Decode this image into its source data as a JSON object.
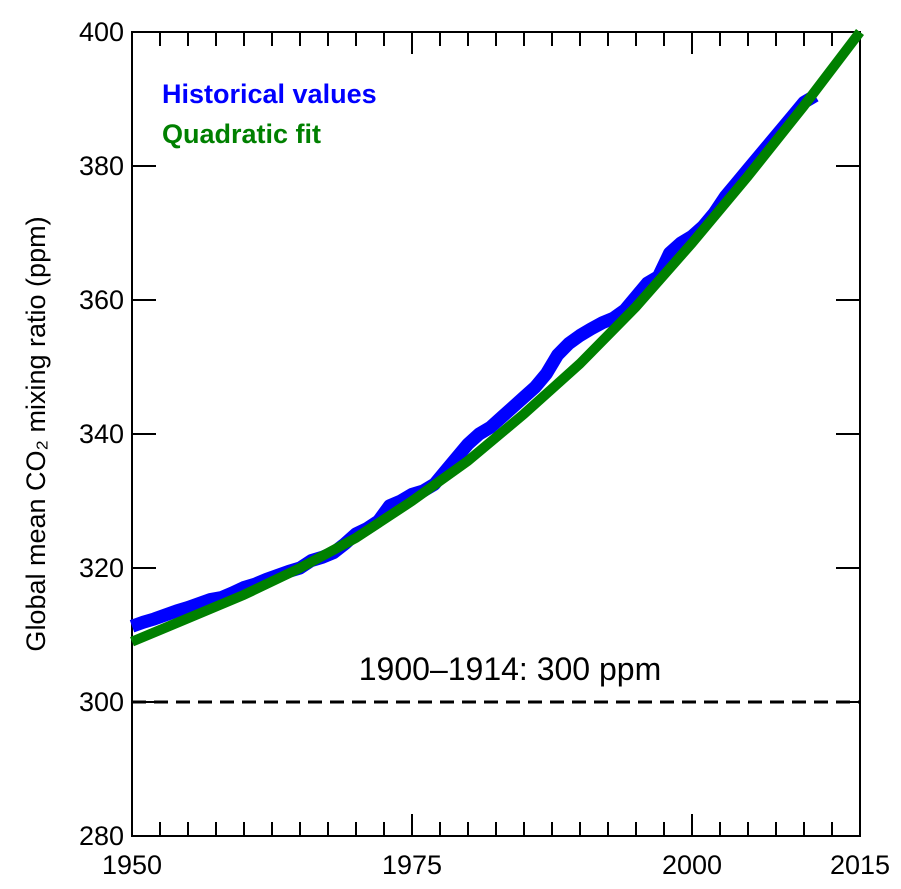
{
  "chart_data": {
    "type": "line",
    "ylabel": "Global mean CO₂ mixing ratio (ppm)",
    "xlim": [
      1950,
      2015
    ],
    "xticks": [
      1950,
      1975,
      2000,
      2015
    ],
    "x_minor_ticks": [
      1952.5,
      1955,
      1957.5,
      1960,
      1962.5,
      1965,
      1967.5,
      1970,
      1972.5,
      1977.5,
      1980,
      1982.5,
      1985,
      1987.5,
      1990,
      1992.5,
      1995,
      1997.5,
      2002.5,
      2005,
      2007.5,
      2010,
      2012.5
    ],
    "ylim": [
      280,
      400
    ],
    "yticks": [
      280,
      300,
      320,
      340,
      360,
      380,
      400
    ],
    "reference_line": {
      "value": 300,
      "label": "1900–1914: 300 ppm",
      "color": "#000000"
    },
    "legend": "upper left",
    "series": [
      {
        "name": "Historical values",
        "color": "#0000ff",
        "x": [
          1950,
          1951,
          1952,
          1953,
          1954,
          1955,
          1956,
          1957,
          1958,
          1959,
          1960,
          1961,
          1962,
          1963,
          1964,
          1965,
          1966,
          1967,
          1968,
          1969,
          1970,
          1971,
          1972,
          1973,
          1974,
          1975,
          1976,
          1977,
          1978,
          1979,
          1980,
          1981,
          1982,
          1983,
          1984,
          1985,
          1986,
          1987,
          1988,
          1989,
          1990,
          1991,
          1992,
          1993,
          1994,
          1995,
          1996,
          1997,
          1998,
          1999,
          2000,
          2001,
          2002,
          2003,
          2004,
          2005,
          2006,
          2007,
          2008,
          2009,
          2010,
          2011
        ],
        "values": [
          311.3,
          311.9,
          312.4,
          313,
          313.6,
          314.1,
          314.7,
          315.3,
          315.6,
          316.3,
          317.1,
          317.6,
          318.3,
          318.9,
          319.5,
          320,
          321.1,
          321.6,
          322.3,
          323.6,
          325.1,
          325.9,
          327,
          329.3,
          330,
          331,
          331.5,
          332.5,
          334.5,
          336.5,
          338.5,
          340,
          341,
          342.5,
          344,
          345.5,
          347,
          349,
          351.8,
          353.5,
          354.7,
          355.7,
          356.6,
          357.3,
          358.5,
          360.5,
          362.5,
          363.5,
          367,
          368.5,
          369.5,
          371,
          373,
          375.5,
          377.5,
          379.5,
          381.5,
          383.5,
          385.5,
          387.5,
          389.5,
          390.5
        ]
      },
      {
        "name": "Quadratic fit",
        "color": "#008000",
        "x": [
          1950,
          1955,
          1960,
          1965,
          1970,
          1975,
          1980,
          1985,
          1990,
          1995,
          2000,
          2005,
          2010,
          2015
        ],
        "values": [
          309,
          312.5,
          316,
          320,
          324.5,
          330,
          336,
          343,
          350.5,
          359,
          368.5,
          378.5,
          389,
          400
        ]
      }
    ]
  }
}
